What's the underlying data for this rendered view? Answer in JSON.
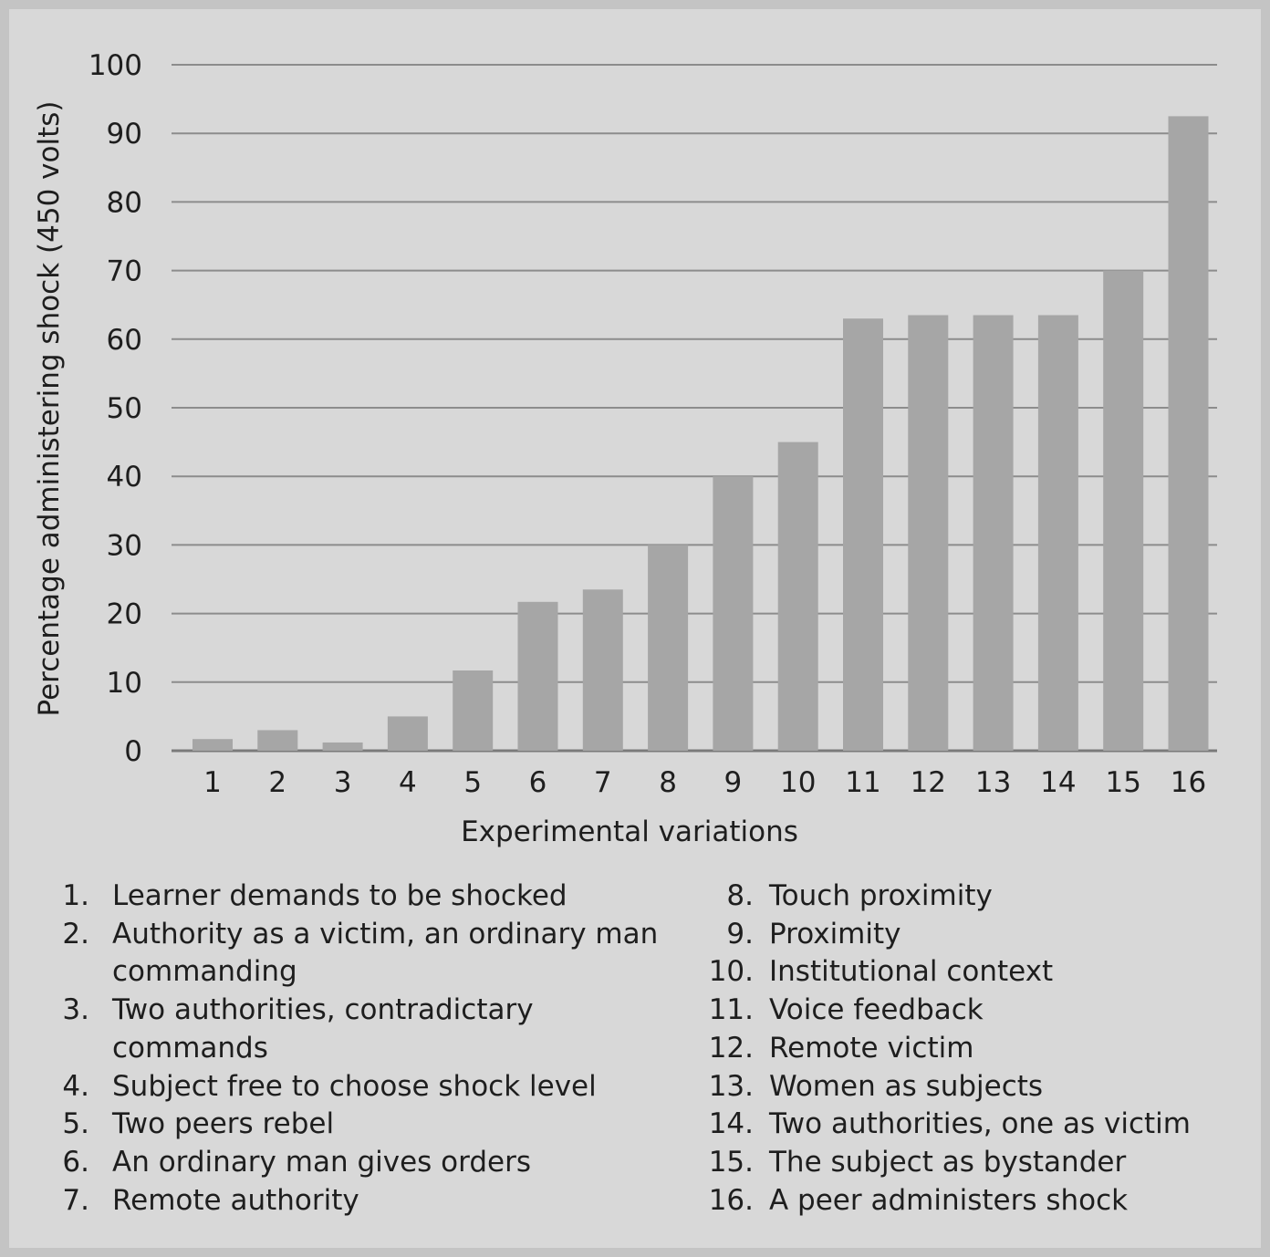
{
  "chart_data": {
    "type": "bar",
    "title": "",
    "xlabel": "Experimental variations",
    "ylabel": "Percentage administering shock (450 volts)",
    "ylim": [
      0,
      100
    ],
    "yticks": [
      0,
      10,
      20,
      30,
      40,
      50,
      60,
      70,
      80,
      90,
      100
    ],
    "grid": true,
    "categories": [
      "1",
      "2",
      "3",
      "4",
      "5",
      "6",
      "7",
      "8",
      "9",
      "10",
      "11",
      "12",
      "13",
      "14",
      "15",
      "16"
    ],
    "values": [
      1.7,
      3,
      1.2,
      5,
      11.7,
      21.7,
      23.5,
      30,
      40,
      45,
      63,
      63.5,
      63.5,
      63.5,
      70,
      92.5
    ],
    "colors": {
      "bar": "#a6a6a6",
      "grid": "#8c8c8c",
      "text": "#1e1e1e"
    }
  },
  "legend": {
    "left": [
      {
        "num": "1.",
        "text": "Learner demands to be shocked"
      },
      {
        "num": "2.",
        "text": "Authority as a victim, an ordinary man commanding"
      },
      {
        "num": "3.",
        "text": "Two authorities, contradictary commands"
      },
      {
        "num": "4.",
        "text": "Subject free to choose shock level"
      },
      {
        "num": "5.",
        "text": "Two peers rebel"
      },
      {
        "num": "6.",
        "text": "An ordinary man gives orders"
      },
      {
        "num": "7.",
        "text": "Remote authority"
      }
    ],
    "right": [
      {
        "num": "8.",
        "text": "Touch proximity"
      },
      {
        "num": "9.",
        "text": "Proximity"
      },
      {
        "num": "10.",
        "text": "Institutional context"
      },
      {
        "num": "11.",
        "text": "Voice feedback"
      },
      {
        "num": "12.",
        "text": "Remote victim"
      },
      {
        "num": "13.",
        "text": "Women as subjects"
      },
      {
        "num": "14.",
        "text": "Two authorities, one as victim"
      },
      {
        "num": "15.",
        "text": "The subject as bystander"
      },
      {
        "num": "16.",
        "text": "A peer administers shock"
      }
    ]
  }
}
